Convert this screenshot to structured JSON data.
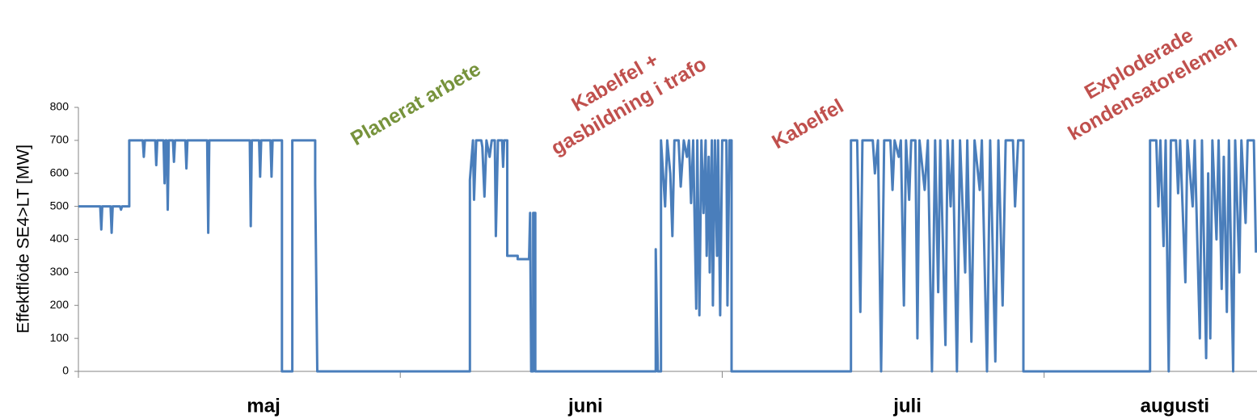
{
  "chart_data": {
    "type": "line",
    "y_label": "Effektflöde  SE4>LT  [MW]",
    "categories": [
      "maj",
      "juni",
      "juli",
      "augusti"
    ],
    "xlim": [
      0,
      113.5
    ],
    "xticks": [
      0,
      31,
      62,
      93
    ],
    "ylim": [
      0,
      800
    ],
    "yticks": [
      0,
      100,
      200,
      300,
      400,
      500,
      600,
      700,
      800
    ],
    "grid": false,
    "annotations": [
      {
        "lines": [
          "Planerat arbete"
        ],
        "color": "#77933c"
      },
      {
        "lines": [
          "Kabelfel +",
          "gasbildning i trafo"
        ],
        "color": "#c0504d"
      },
      {
        "lines": [
          "Kabelfel"
        ],
        "color": "#c0504d"
      },
      {
        "lines": [
          "Exploderade",
          "kondensatorelemen"
        ],
        "color": "#c0504d"
      }
    ],
    "series": [
      {
        "color": "#4a7ebb",
        "x": [
          0,
          2.1,
          2.2,
          2.3,
          3.1,
          3.2,
          3.3,
          4.0,
          4.1,
          4.2,
          4.9,
          4.9,
          6.2,
          6.3,
          6.4,
          7.4,
          7.5,
          7.6,
          8.2,
          8.3,
          8.4,
          8.5,
          8.6,
          8.7,
          9.1,
          9.2,
          9.3,
          10.3,
          10.4,
          10.5,
          12.4,
          12.5,
          12.6,
          16.5,
          16.6,
          16.7,
          17.4,
          17.5,
          17.6,
          18.5,
          18.6,
          18.7,
          19.6,
          19.6,
          20.6,
          20.6,
          22.8,
          22.8,
          23.0,
          37.7,
          37.7,
          38.0,
          38.1,
          38.3,
          38.8,
          38.9,
          39.1,
          39.3,
          39.6,
          39.8,
          40.1,
          40.2,
          40.4,
          40.8,
          40.9,
          41.0,
          41.3,
          41.3,
          42.3,
          42.3,
          43.4,
          43.5,
          43.6,
          43.8,
          43.8,
          44.0,
          44.0,
          55.6,
          55.6,
          55.8,
          56.1,
          56.1,
          56.5,
          56.7,
          57.0,
          57.2,
          57.4,
          57.8,
          58.0,
          58.3,
          58.6,
          58.8,
          59.0,
          59.2,
          59.5,
          59.6,
          59.8,
          60.0,
          60.2,
          60.4,
          60.5,
          60.7,
          60.8,
          61.0,
          61.1,
          61.3,
          61.5,
          61.6,
          61.8,
          62.0,
          62.4,
          62.5,
          62.7,
          62.9,
          62.9,
          74.4,
          74.4,
          75.0,
          75.3,
          75.5,
          76.5,
          76.7,
          77.0,
          77.3,
          77.6,
          78.2,
          78.4,
          78.6,
          79.0,
          79.2,
          79.5,
          79.7,
          80.0,
          80.2,
          80.6,
          80.8,
          81.0,
          81.5,
          81.8,
          82.2,
          82.5,
          82.8,
          83.0,
          83.5,
          83.7,
          84.0,
          84.2,
          84.6,
          84.9,
          85.4,
          85.6,
          86.0,
          86.3,
          86.8,
          87.0,
          87.5,
          87.8,
          88.3,
          88.6,
          89.0,
          89.3,
          90.0,
          90.2,
          90.5,
          91.0,
          91.0,
          103.2,
          103.2,
          103.8,
          104.0,
          104.2,
          104.5,
          104.7,
          105.0,
          105.2,
          105.7,
          105.9,
          106.1,
          106.6,
          106.8,
          107.3,
          107.5,
          108.0,
          108.2,
          108.6,
          108.8,
          109.0,
          109.2,
          109.6,
          109.8,
          110.1,
          110.3,
          110.6,
          110.8,
          111.2,
          111.4,
          111.8,
          112.0,
          112.4,
          112.6,
          113.2,
          113.4
        ],
        "values": [
          500,
          500,
          430,
          500,
          500,
          420,
          500,
          500,
          490,
          500,
          500,
          700,
          700,
          650,
          700,
          700,
          625,
          700,
          700,
          570,
          700,
          700,
          490,
          700,
          700,
          635,
          700,
          700,
          615,
          700,
          700,
          420,
          700,
          700,
          440,
          700,
          700,
          590,
          700,
          700,
          590,
          700,
          700,
          0,
          0,
          700,
          700,
          570,
          0,
          0,
          580,
          700,
          520,
          700,
          700,
          680,
          530,
          700,
          650,
          700,
          700,
          410,
          700,
          700,
          620,
          700,
          700,
          350,
          350,
          340,
          340,
          480,
          0,
          0,
          480,
          480,
          0,
          0,
          370,
          0,
          0,
          700,
          500,
          700,
          600,
          410,
          700,
          700,
          560,
          700,
          650,
          700,
          510,
          700,
          190,
          700,
          170,
          700,
          480,
          700,
          350,
          650,
          300,
          700,
          200,
          700,
          350,
          700,
          170,
          700,
          700,
          200,
          700,
          700,
          0,
          0,
          700,
          700,
          180,
          700,
          700,
          600,
          700,
          0,
          700,
          700,
          550,
          700,
          650,
          700,
          200,
          700,
          520,
          700,
          700,
          100,
          700,
          550,
          700,
          0,
          700,
          240,
          700,
          80,
          700,
          500,
          700,
          0,
          700,
          300,
          700,
          90,
          700,
          550,
          700,
          0,
          700,
          30,
          700,
          200,
          700,
          700,
          500,
          700,
          700,
          0,
          0,
          700,
          700,
          500,
          700,
          380,
          700,
          0,
          700,
          700,
          540,
          700,
          270,
          700,
          500,
          700,
          100,
          700,
          40,
          600,
          100,
          700,
          400,
          700,
          250,
          650,
          180,
          700,
          0,
          700,
          300,
          700,
          450,
          700,
          700,
          360
        ]
      }
    ]
  }
}
